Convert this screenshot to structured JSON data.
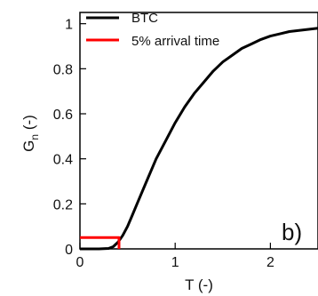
{
  "chart_data": {
    "type": "line",
    "panel_label": "b)",
    "xlabel": "T (-)",
    "ylabel_main": "G",
    "ylabel_subscript": "n",
    "ylabel_suffix": " (-)",
    "xlim": [
      0,
      2.5
    ],
    "ylim": [
      0,
      1.05
    ],
    "x_ticks": [
      0,
      1,
      2
    ],
    "y_ticks": [
      0,
      0.2,
      0.4,
      0.6,
      0.8,
      1
    ],
    "grid": false,
    "legend_position": "top-left",
    "series": [
      {
        "name": "BTC",
        "color": "#000000",
        "x": [
          0,
          0.2,
          0.3,
          0.35,
          0.4,
          0.45,
          0.5,
          0.55,
          0.6,
          0.7,
          0.8,
          0.9,
          1.0,
          1.1,
          1.2,
          1.3,
          1.4,
          1.5,
          1.6,
          1.7,
          1.8,
          1.9,
          2.0,
          2.1,
          2.2,
          2.3,
          2.4,
          2.5
        ],
        "y": [
          0,
          0,
          0.002,
          0.01,
          0.03,
          0.06,
          0.1,
          0.15,
          0.2,
          0.3,
          0.4,
          0.48,
          0.56,
          0.63,
          0.69,
          0.74,
          0.79,
          0.83,
          0.86,
          0.89,
          0.91,
          0.93,
          0.945,
          0.955,
          0.965,
          0.97,
          0.975,
          0.98
        ]
      },
      {
        "name": "5% arrival time",
        "color": "#ff0000",
        "x": [
          0,
          0.41,
          0.41
        ],
        "y": [
          0.05,
          0.05,
          0
        ]
      }
    ]
  }
}
